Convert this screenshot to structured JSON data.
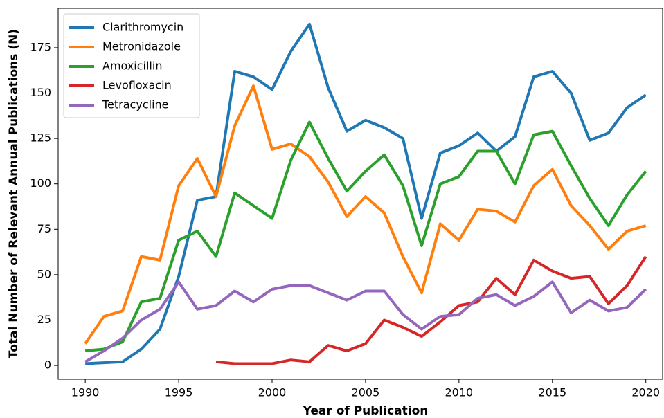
{
  "chart_data": {
    "type": "line",
    "x": [
      1990,
      1991,
      1992,
      1993,
      1994,
      1995,
      1996,
      1997,
      1998,
      1999,
      2000,
      2001,
      2002,
      2003,
      2004,
      2005,
      2006,
      2007,
      2008,
      2009,
      2010,
      2011,
      2012,
      2013,
      2014,
      2015,
      2016,
      2017,
      2018,
      2019,
      2020
    ],
    "x_label": "Year of Publication",
    "y_label": "Total Number of Relevant Annual Publications (N)",
    "series": [
      {
        "name": "Clarithromycin",
        "color": "#1f77b4",
        "values": [
          1,
          1.5,
          2,
          9,
          20,
          49,
          91,
          93,
          162,
          159,
          152,
          173,
          188,
          153,
          129,
          135,
          131,
          125,
          81,
          117,
          121,
          128,
          118,
          126,
          159,
          162,
          150,
          124,
          128,
          142,
          149
        ]
      },
      {
        "name": "Metronidazole",
        "color": "#ff7f0e",
        "values": [
          12,
          27,
          30,
          60,
          58,
          99,
          114,
          93,
          132,
          154,
          119,
          122,
          115,
          101,
          82,
          93,
          84,
          60,
          40,
          78,
          69,
          86,
          85,
          79,
          99,
          108,
          88,
          77,
          64,
          74,
          77
        ]
      },
      {
        "name": "Amoxicillin",
        "color": "#2ca02c",
        "values": [
          8,
          9,
          13,
          35,
          37,
          69,
          74,
          60,
          95,
          88,
          81,
          113,
          134,
          114,
          96,
          107,
          116,
          99,
          66,
          100,
          104,
          118,
          118,
          100,
          127,
          129,
          110,
          92,
          77,
          94,
          107
        ]
      },
      {
        "name": "Levofloxacin",
        "color": "#d62728",
        "values": [
          null,
          null,
          null,
          null,
          null,
          null,
          null,
          2,
          1,
          1,
          1,
          3,
          2,
          11,
          8,
          12,
          25,
          21,
          16,
          24,
          33,
          35,
          48,
          39,
          58,
          52,
          48,
          49,
          34,
          44,
          60
        ]
      },
      {
        "name": "Tetracycline",
        "color": "#9467bd",
        "values": [
          2,
          8,
          15,
          25,
          31,
          46,
          31,
          33,
          41,
          35,
          42,
          44,
          44,
          40,
          36,
          41,
          41,
          28,
          20,
          27,
          28,
          37,
          39,
          33,
          38,
          46,
          29,
          36,
          30,
          32,
          42
        ]
      }
    ],
    "xlim": [
      1988.55,
      2020.9
    ],
    "xticks": [
      1990,
      1995,
      2000,
      2005,
      2010,
      2015,
      2020
    ],
    "ylim": [
      -7.6,
      196.7
    ],
    "yticks": [
      0,
      25,
      50,
      75,
      100,
      125,
      150,
      175
    ],
    "grid": false,
    "legend": "upper left"
  }
}
